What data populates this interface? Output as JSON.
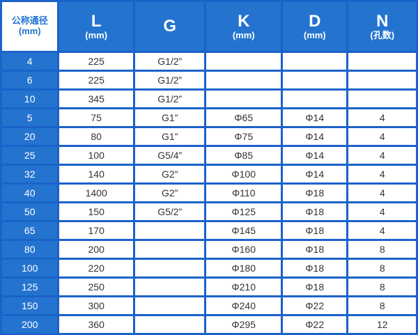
{
  "colors": {
    "border": "#1b62c9",
    "header": "#2474cf"
  },
  "headers": [
    {
      "title": "公称通径",
      "unit": "(mm)"
    },
    {
      "title": "L",
      "unit": "(mm)"
    },
    {
      "title": "G",
      "unit": ""
    },
    {
      "title": "K",
      "unit": "(mm)"
    },
    {
      "title": "D",
      "unit": "(mm)"
    },
    {
      "title": "N",
      "unit": "(孔数)"
    }
  ],
  "rows": [
    [
      "4",
      "225",
      "G1/2”",
      "",
      "",
      ""
    ],
    [
      "6",
      "225",
      "G1/2”",
      "",
      "",
      ""
    ],
    [
      "10",
      "345",
      "G1/2”",
      "",
      "",
      ""
    ],
    [
      "5",
      "75",
      "G1”",
      "Φ65",
      "Φ14",
      "4"
    ],
    [
      "20",
      "80",
      "G1”",
      "Φ75",
      "Φ14",
      "4"
    ],
    [
      "25",
      "100",
      "G5/4”",
      "Φ85",
      "Φ14",
      "4"
    ],
    [
      "32",
      "140",
      "G2”",
      "Φ100",
      "Φ14",
      "4"
    ],
    [
      "40",
      "1400",
      "G2”",
      "Φ110",
      "Φ18",
      "4"
    ],
    [
      "50",
      "150",
      "G5/2”",
      "Φ125",
      "Φ18",
      "4"
    ],
    [
      "65",
      "170",
      "",
      "Φ145",
      "Φ18",
      "4"
    ],
    [
      "80",
      "200",
      "",
      "Φ160",
      "Φ18",
      "8"
    ],
    [
      "100",
      "220",
      "",
      "Φ180",
      "Φ18",
      "8"
    ],
    [
      "125",
      "250",
      "",
      "Φ210",
      "Φ18",
      "8"
    ],
    [
      "150",
      "300",
      "",
      "Φ240",
      "Φ22",
      "8"
    ],
    [
      "200",
      "360",
      "",
      "Φ295",
      "Φ22",
      "12"
    ]
  ]
}
